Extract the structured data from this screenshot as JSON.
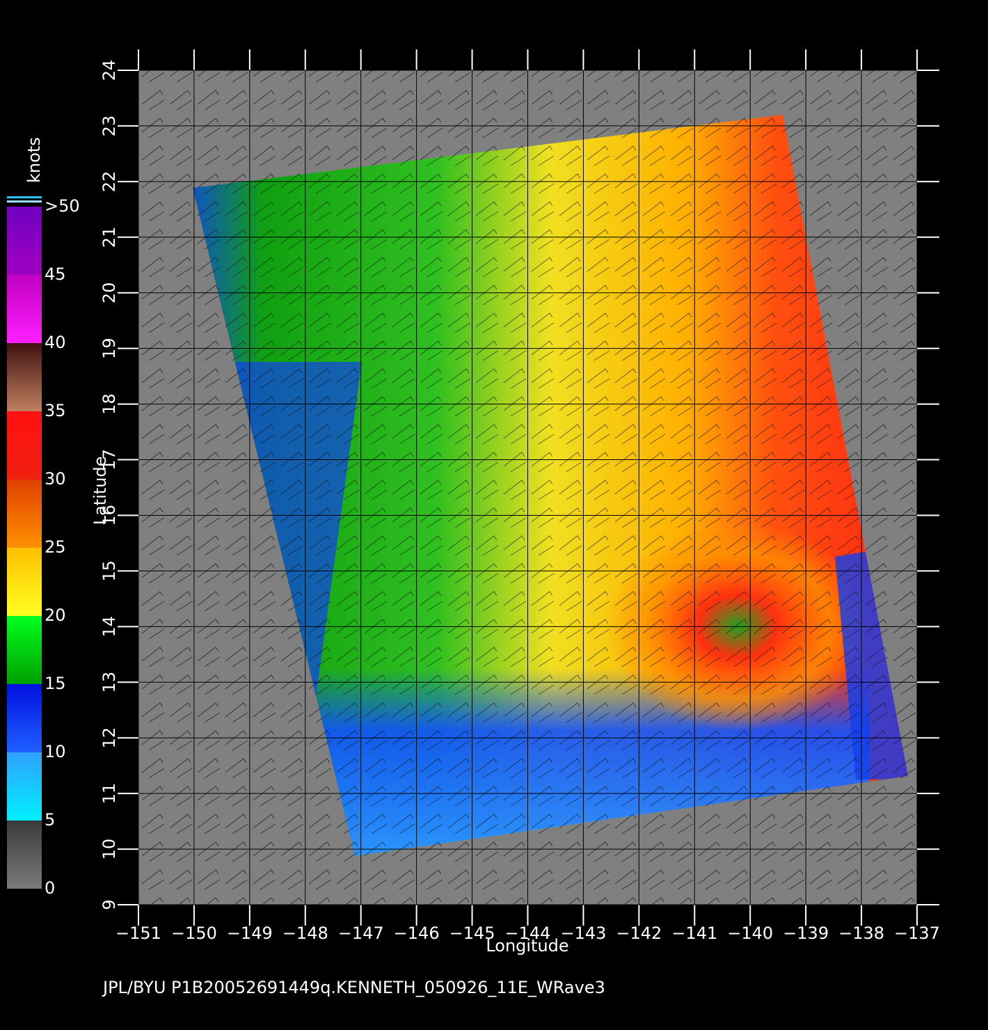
{
  "chart_data": {
    "type": "map",
    "xlabel": "Longitude",
    "ylabel": "Latitude",
    "footer": "JPL/BYU  P1B20052691449q.KENNETH_050926_11E_WRave3",
    "xlim": [
      -151,
      -137
    ],
    "ylim": [
      9,
      24
    ],
    "xticks": [
      {
        "value": -151,
        "label": "−151"
      },
      {
        "value": -150,
        "label": "−150"
      },
      {
        "value": -149,
        "label": "−149"
      },
      {
        "value": -148,
        "label": "−148"
      },
      {
        "value": -147,
        "label": "−147"
      },
      {
        "value": -146,
        "label": "−146"
      },
      {
        "value": -145,
        "label": "−145"
      },
      {
        "value": -144,
        "label": "−144"
      },
      {
        "value": -143,
        "label": "−143"
      },
      {
        "value": -142,
        "label": "−142"
      },
      {
        "value": -141,
        "label": "−141"
      },
      {
        "value": -140,
        "label": "−140"
      },
      {
        "value": -139,
        "label": "−139"
      },
      {
        "value": -138,
        "label": "−138"
      },
      {
        "value": -137,
        "label": "−137"
      }
    ],
    "yticks": [
      9,
      10,
      11,
      12,
      13,
      14,
      15,
      16,
      17,
      18,
      19,
      20,
      21,
      22,
      23,
      24
    ],
    "grid": true,
    "colorbar": {
      "title": "knots",
      "lim": [
        0,
        50
      ],
      "ticks": [
        0,
        5,
        10,
        15,
        20,
        25,
        30,
        35,
        40,
        45,
        {
          "value": 50,
          "label": ">50"
        }
      ],
      "colors": [
        [
          "#7a7a7a",
          "#3a3a3a"
        ],
        [
          "#00f0ff",
          "#30a0ff"
        ],
        [
          "#2060ff",
          "#0010e0"
        ],
        [
          "#00a000",
          "#00ff20"
        ],
        [
          "#ffff20",
          "#ffc000"
        ],
        [
          "#ff9000",
          "#e04000"
        ],
        [
          "#f02010",
          "#ff1010"
        ],
        [
          "#c08060",
          "#401010"
        ],
        [
          "#ff20ff",
          "#c000c0"
        ],
        [
          "#a000c0",
          "#7000c0"
        ]
      ]
    }
  }
}
